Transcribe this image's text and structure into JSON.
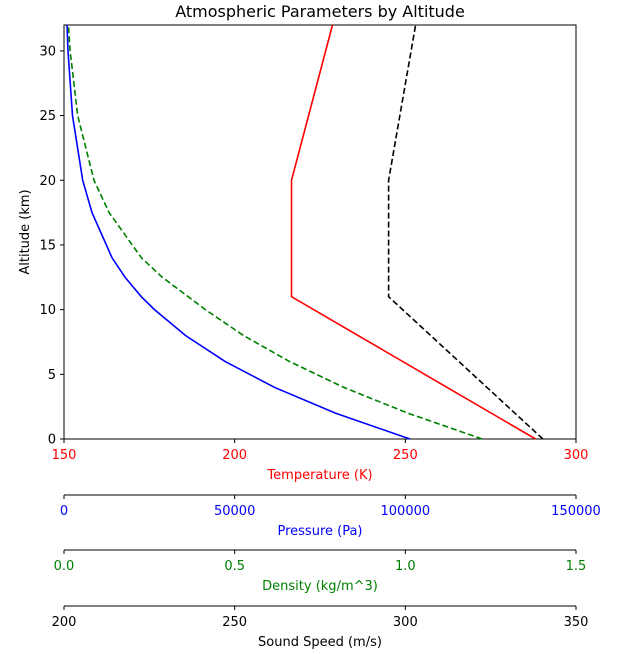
{
  "chart_data": {
    "type": "line",
    "title": "Atmospheric Parameters by Altitude",
    "ylabel": "Altitude (km)",
    "ylim": [
      0,
      32
    ],
    "yticks": [
      0,
      5,
      10,
      15,
      20,
      25,
      30
    ],
    "grid": false,
    "axes": [
      {
        "id": "temperature",
        "label": "Temperature (K)",
        "color": "#ff0000",
        "xlim": [
          150,
          300
        ],
        "ticks": [
          "150",
          "200",
          "250",
          "300"
        ],
        "tick_values": [
          150,
          200,
          250,
          300
        ]
      },
      {
        "id": "pressure",
        "label": "Pressure (Pa)",
        "color": "#0000ff",
        "xlim": [
          0,
          150000
        ],
        "ticks": [
          "0",
          "50000",
          "100000",
          "150000"
        ],
        "tick_values": [
          0,
          50000,
          100000,
          150000
        ]
      },
      {
        "id": "density",
        "label": "Density (kg/m^3)",
        "color": "#008000",
        "xlim": [
          0,
          1.5
        ],
        "ticks": [
          "0.0",
          "0.5",
          "1.0",
          "1.5"
        ],
        "tick_values": [
          0,
          0.5,
          1.0,
          1.5
        ]
      },
      {
        "id": "sound_speed",
        "label": "Sound Speed (m/s)",
        "color": "#000000",
        "xlim": [
          200,
          350
        ],
        "ticks": [
          "200",
          "250",
          "300",
          "350"
        ],
        "tick_values": [
          200,
          250,
          300,
          350
        ]
      }
    ],
    "series": [
      {
        "axis": "temperature",
        "color": "#ff0000",
        "style": "solid",
        "x": [
          288.15,
          216.65,
          216.65,
          228.65
        ],
        "y": [
          0,
          11,
          20,
          32
        ]
      },
      {
        "axis": "pressure",
        "color": "#0000ff",
        "style": "solid",
        "x": [
          101325,
          79500,
          61640,
          47181,
          35600,
          26500,
          22632,
          17900,
          14100,
          8200,
          5475,
          2500,
          1172,
          868
        ],
        "y": [
          0,
          2,
          4,
          6,
          8,
          10,
          11,
          12.5,
          14,
          17.5,
          20,
          25,
          30,
          32
        ]
      },
      {
        "axis": "density",
        "color": "#008000",
        "style": "dashed",
        "x": [
          1.225,
          1.007,
          0.819,
          0.66,
          0.526,
          0.414,
          0.364,
          0.288,
          0.227,
          0.132,
          0.088,
          0.04,
          0.018,
          0.013
        ],
        "y": [
          0,
          2,
          4,
          6,
          8,
          10,
          11,
          12.5,
          14,
          17.5,
          20,
          25,
          30,
          32
        ]
      },
      {
        "axis": "sound_speed",
        "color": "#000000",
        "style": "dashed",
        "x": [
          340.3,
          295.1,
          295.1,
          303.0
        ],
        "y": [
          0,
          11,
          20,
          32
        ]
      }
    ]
  }
}
